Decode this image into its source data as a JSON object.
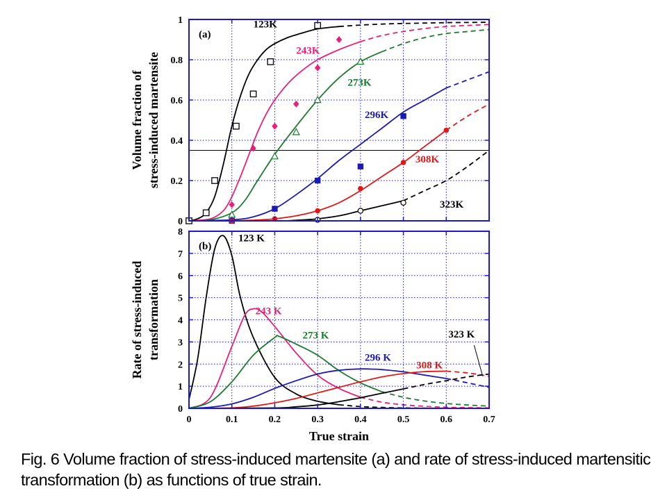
{
  "caption": "Fig. 6  Volume fraction of stress-induced martensite (a) and rate of stress-induced martensitic transformation (b) as functions of true strain.",
  "colors": {
    "axis": "#1a1acc",
    "grid": "#1a1acc",
    "123K": "#000000",
    "243K": "#e8207a",
    "273K": "#1e7a2e",
    "296K": "#1a1ab4",
    "308K": "#e01818",
    "323K": "#000000"
  },
  "chart_data": [
    {
      "type": "line",
      "panel_label": "(a)",
      "xlabel": "",
      "ylabel": "Volume fraction of\nstress-induced martensite",
      "xlim": [
        0,
        0.7
      ],
      "ylim": [
        0,
        1
      ],
      "xticks": [
        0,
        0.1,
        0.2,
        0.3,
        0.4,
        0.5,
        0.6,
        0.7
      ],
      "yticks": [
        "0",
        "0.2",
        "0.4",
        "0.6",
        "0.8",
        "1"
      ],
      "ytick_values": [
        0,
        0.2,
        0.4,
        0.6,
        0.8,
        1
      ],
      "grid": true,
      "reference_line_y": 0.35,
      "series": [
        {
          "name": "123K",
          "color": "#000000",
          "label": "123K",
          "label_at": [
            0.15,
            0.96
          ],
          "x": [
            0.0,
            0.02,
            0.04,
            0.06,
            0.08,
            0.1,
            0.12,
            0.14,
            0.16,
            0.18,
            0.2,
            0.23,
            0.26,
            0.3,
            0.35,
            0.4,
            0.45,
            0.5,
            0.55,
            0.6,
            0.65,
            0.7
          ],
          "y": [
            0.0,
            0.01,
            0.04,
            0.12,
            0.28,
            0.47,
            0.62,
            0.73,
            0.8,
            0.85,
            0.88,
            0.91,
            0.93,
            0.953,
            0.965,
            0.972,
            0.977,
            0.98,
            0.982,
            0.984,
            0.985,
            0.986
          ],
          "solid_until": 0.35,
          "markers": "open-square",
          "points_x": [
            0.0,
            0.04,
            0.06,
            0.11,
            0.15,
            0.19,
            0.3
          ],
          "points_y": [
            0.0,
            0.04,
            0.2,
            0.47,
            0.63,
            0.79,
            0.97
          ]
        },
        {
          "name": "243K",
          "color": "#e8207a",
          "label": "243K",
          "label_at": [
            0.25,
            0.83
          ],
          "x": [
            0.0,
            0.05,
            0.08,
            0.1,
            0.12,
            0.14,
            0.16,
            0.18,
            0.2,
            0.23,
            0.26,
            0.3,
            0.35,
            0.4,
            0.45,
            0.5,
            0.55,
            0.6,
            0.65,
            0.7
          ],
          "y": [
            0.0,
            0.01,
            0.05,
            0.12,
            0.22,
            0.33,
            0.44,
            0.53,
            0.6,
            0.68,
            0.74,
            0.8,
            0.85,
            0.89,
            0.92,
            0.94,
            0.955,
            0.965,
            0.97,
            0.975
          ],
          "solid_until": 0.4,
          "markers": "filled-diamond",
          "points_x": [
            0.1,
            0.15,
            0.2,
            0.25,
            0.3,
            0.35
          ],
          "points_y": [
            0.08,
            0.36,
            0.47,
            0.58,
            0.76,
            0.9
          ]
        },
        {
          "name": "273K",
          "color": "#1e7a2e",
          "label": "273K",
          "label_at": [
            0.37,
            0.67
          ],
          "x": [
            0.0,
            0.05,
            0.1,
            0.13,
            0.16,
            0.2,
            0.25,
            0.3,
            0.35,
            0.4,
            0.45,
            0.5,
            0.55,
            0.6,
            0.65,
            0.7
          ],
          "y": [
            0.0,
            0.005,
            0.04,
            0.1,
            0.2,
            0.33,
            0.47,
            0.6,
            0.71,
            0.79,
            0.84,
            0.88,
            0.91,
            0.93,
            0.94,
            0.95
          ],
          "solid_until": 0.45,
          "markers": "open-triangle",
          "points_x": [
            0.1,
            0.2,
            0.25,
            0.3,
            0.4
          ],
          "points_y": [
            0.03,
            0.32,
            0.44,
            0.6,
            0.79
          ]
        },
        {
          "name": "296K",
          "color": "#1a1ab4",
          "label": "296K",
          "label_at": [
            0.41,
            0.51
          ],
          "x": [
            0.0,
            0.1,
            0.15,
            0.2,
            0.25,
            0.3,
            0.35,
            0.4,
            0.45,
            0.5,
            0.55,
            0.6,
            0.65,
            0.7
          ],
          "y": [
            0.0,
            0.005,
            0.02,
            0.06,
            0.13,
            0.21,
            0.3,
            0.38,
            0.46,
            0.54,
            0.6,
            0.66,
            0.7,
            0.74
          ],
          "solid_until": 0.6,
          "markers": "filled-square",
          "points_x": [
            0.1,
            0.2,
            0.3,
            0.4,
            0.5
          ],
          "points_y": [
            0.0,
            0.06,
            0.2,
            0.27,
            0.52
          ]
        },
        {
          "name": "308K",
          "color": "#e01818",
          "label": "308K",
          "label_at": [
            0.528,
            0.29
          ],
          "x": [
            0.0,
            0.1,
            0.15,
            0.2,
            0.25,
            0.3,
            0.35,
            0.4,
            0.45,
            0.5,
            0.55,
            0.6,
            0.65,
            0.7
          ],
          "y": [
            0.0,
            0.0,
            0.003,
            0.01,
            0.025,
            0.05,
            0.09,
            0.15,
            0.22,
            0.29,
            0.37,
            0.45,
            0.52,
            0.58
          ],
          "solid_until": 0.6,
          "markers": "filled-circle",
          "points_x": [
            0.1,
            0.2,
            0.3,
            0.4,
            0.5,
            0.6
          ],
          "points_y": [
            0.0,
            0.01,
            0.05,
            0.16,
            0.29,
            0.45
          ]
        },
        {
          "name": "323K",
          "color": "#000000",
          "label": "323K",
          "label_at": [
            0.585,
            0.065
          ],
          "x": [
            0.0,
            0.2,
            0.25,
            0.3,
            0.35,
            0.4,
            0.45,
            0.5,
            0.55,
            0.6,
            0.65,
            0.7
          ],
          "y": [
            0.0,
            0.0,
            0.003,
            0.01,
            0.025,
            0.05,
            0.075,
            0.1,
            0.15,
            0.2,
            0.27,
            0.35
          ],
          "solid_until": 0.5,
          "markers": "open-circle",
          "points_x": [
            0.3,
            0.4,
            0.5
          ],
          "points_y": [
            0.005,
            0.05,
            0.09
          ]
        }
      ]
    },
    {
      "type": "line",
      "panel_label": "(b)",
      "xlabel": "True strain",
      "ylabel": "Rate of stress-induced\ntransformation",
      "xlim": [
        0,
        0.7
      ],
      "ylim": [
        0,
        8
      ],
      "xticks": [
        0,
        0.1,
        0.2,
        0.3,
        0.4,
        0.5,
        0.6,
        0.7
      ],
      "xtick_labels": [
        "0",
        "0.1",
        "0.2",
        "0.3",
        "0.4",
        "0.5",
        "0.6",
        "0.7"
      ],
      "yticks": [
        "0",
        "1",
        "2",
        "3",
        "4",
        "5",
        "6",
        "7",
        "8"
      ],
      "ytick_values": [
        0,
        1,
        2,
        3,
        4,
        5,
        6,
        7,
        8
      ],
      "grid": true,
      "series": [
        {
          "name": "123 K",
          "color": "#000000",
          "label": "123 K",
          "label_at": [
            0.115,
            7.55
          ],
          "x": [
            0.0,
            0.02,
            0.04,
            0.06,
            0.08,
            0.1,
            0.12,
            0.15,
            0.2,
            0.25,
            0.3,
            0.35,
            0.4,
            0.45,
            0.5,
            0.55,
            0.6,
            0.65,
            0.7
          ],
          "y": [
            0.4,
            2.2,
            5.0,
            7.2,
            7.8,
            6.9,
            5.0,
            3.2,
            1.4,
            0.65,
            0.32,
            0.16,
            0.08,
            0.04,
            0.02,
            0.01,
            0.005,
            0.003,
            0.002
          ],
          "solid_until": 0.35
        },
        {
          "name": "243 K",
          "color": "#e8207a",
          "label": "243 K",
          "label_at": [
            0.155,
            4.25
          ],
          "x": [
            0.0,
            0.05,
            0.1,
            0.13,
            0.15,
            0.17,
            0.2,
            0.25,
            0.3,
            0.35,
            0.4,
            0.45,
            0.5,
            0.55,
            0.6,
            0.65,
            0.7
          ],
          "y": [
            0.0,
            0.5,
            2.8,
            4.2,
            4.5,
            4.35,
            3.7,
            2.5,
            1.5,
            0.9,
            0.5,
            0.28,
            0.16,
            0.09,
            0.05,
            0.03,
            0.02
          ],
          "solid_until": 0.4
        },
        {
          "name": "273 K",
          "color": "#1e7a2e",
          "label": "273 K",
          "label_at": [
            0.265,
            3.15
          ],
          "x": [
            0.0,
            0.05,
            0.1,
            0.15,
            0.2,
            0.21,
            0.25,
            0.3,
            0.35,
            0.4,
            0.45,
            0.5,
            0.55,
            0.6,
            0.65,
            0.7
          ],
          "y": [
            0.0,
            0.3,
            1.2,
            2.4,
            3.2,
            3.25,
            2.9,
            2.4,
            1.7,
            1.15,
            0.75,
            0.5,
            0.33,
            0.22,
            0.15,
            0.1
          ],
          "solid_until": 0.45
        },
        {
          "name": "296 K",
          "color": "#1a1ab4",
          "label": "296 K",
          "label_at": [
            0.41,
            2.15
          ],
          "x": [
            0.0,
            0.05,
            0.1,
            0.15,
            0.2,
            0.25,
            0.3,
            0.35,
            0.4,
            0.43,
            0.45,
            0.5,
            0.55,
            0.6,
            0.65,
            0.7
          ],
          "y": [
            0.0,
            0.05,
            0.2,
            0.5,
            0.9,
            1.25,
            1.55,
            1.72,
            1.78,
            1.77,
            1.75,
            1.65,
            1.5,
            1.35,
            1.15,
            0.95
          ],
          "solid_until": 0.6
        },
        {
          "name": "308 K",
          "color": "#e01818",
          "label": "308 K",
          "label_at": [
            0.53,
            1.8
          ],
          "x": [
            0.0,
            0.1,
            0.15,
            0.2,
            0.25,
            0.3,
            0.35,
            0.4,
            0.45,
            0.5,
            0.55,
            0.6,
            0.65,
            0.7
          ],
          "y": [
            0.0,
            0.02,
            0.1,
            0.25,
            0.45,
            0.7,
            0.95,
            1.2,
            1.42,
            1.57,
            1.66,
            1.68,
            1.6,
            1.45
          ],
          "solid_until": 0.6
        },
        {
          "name": "323 K",
          "color": "#000000",
          "label": "323 K",
          "label_at": [
            0.605,
            3.2
          ],
          "x": [
            0.0,
            0.2,
            0.25,
            0.3,
            0.35,
            0.4,
            0.45,
            0.5,
            0.55,
            0.6,
            0.65,
            0.7
          ],
          "y": [
            0.0,
            0.02,
            0.07,
            0.15,
            0.3,
            0.48,
            0.68,
            0.88,
            1.08,
            1.25,
            1.42,
            1.55
          ],
          "solid_until": 0.5,
          "leader_from": [
            0.665,
            2.85
          ],
          "leader_to": [
            0.685,
            1.45
          ]
        }
      ]
    }
  ]
}
